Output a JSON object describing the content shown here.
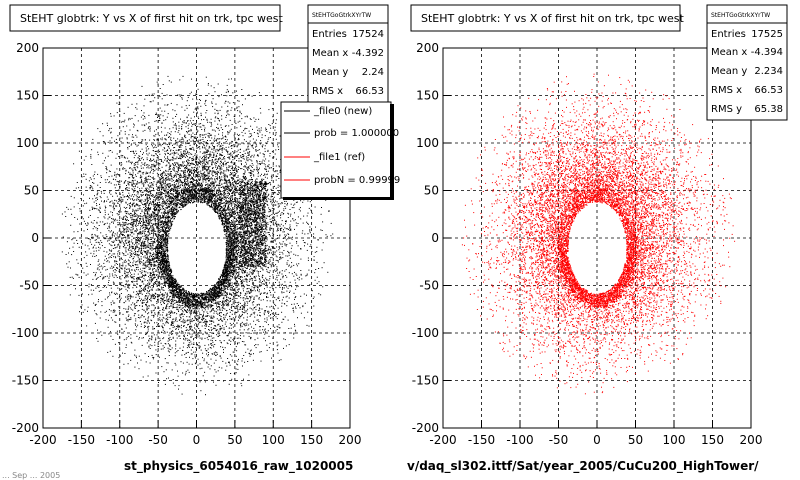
{
  "colors": {
    "new": "#000000",
    "ref": "#ff0000",
    "frame": "#000000",
    "grid": "#000000",
    "background": "#ffffff"
  },
  "footer_date_text": "... Sep ... 2005",
  "chart_data": [
    {
      "type": "scatter",
      "title": "StEHT globtrk: Y vs X of first hit on trk, tpc west",
      "xlabel": "st_physics_6054016_raw_1020005",
      "ylabel": "",
      "xlim": [
        -200,
        200
      ],
      "ylim": [
        -200,
        200
      ],
      "xticks": [
        -200,
        -150,
        -100,
        -50,
        0,
        50,
        100,
        150,
        200
      ],
      "yticks": [
        -200,
        -150,
        -100,
        -50,
        0,
        50,
        100,
        150,
        200
      ],
      "grid": true,
      "color": "#000000",
      "distribution": {
        "outer_radius": 170,
        "inner_hole_rx": 38,
        "inner_hole_ry": 48,
        "hole_center": [
          0,
          -10
        ],
        "ring_thickness": 12,
        "extra_right_blob": true
      },
      "stats": {
        "name": "StEHTGoGtrkXYrTW",
        "rows": [
          {
            "label": "Entries",
            "value": "17524"
          },
          {
            "label": "Mean x",
            "value": "-4.392"
          },
          {
            "label": "Mean y",
            "value": "2.24"
          },
          {
            "label": "RMS x",
            "value": "66.53"
          }
        ]
      },
      "legend": {
        "placement": "top-right",
        "entries": [
          {
            "label": "_file0 (new)",
            "color": "#000000"
          },
          {
            "label": "prob = 1.000000",
            "color": "#000000"
          },
          {
            "label": "_file1 (ref)",
            "color": "#ff0000"
          },
          {
            "label": "probN = 0.99999",
            "color": "#ff0000"
          }
        ]
      }
    },
    {
      "type": "scatter",
      "title": "StEHT globtrk: Y vs X of first hit on trk, tpc west",
      "xlabel": "v/daq_sl302.ittf/Sat/year_2005/CuCu200_HighTower/",
      "ylabel": "",
      "xlim": [
        -200,
        200
      ],
      "ylim": [
        -200,
        200
      ],
      "xticks": [
        -200,
        -150,
        -100,
        -50,
        0,
        50,
        100,
        150,
        200
      ],
      "yticks": [
        -200,
        -150,
        -100,
        -50,
        0,
        50,
        100,
        150,
        200
      ],
      "grid": true,
      "color": "#ff0000",
      "distribution": {
        "outer_radius": 170,
        "inner_hole_rx": 38,
        "inner_hole_ry": 48,
        "hole_center": [
          0,
          -10
        ],
        "ring_thickness": 12,
        "extra_right_blob": false
      },
      "stats": {
        "name": "StEHTGoGtrkXYrTW",
        "rows": [
          {
            "label": "Entries",
            "value": "17525"
          },
          {
            "label": "Mean x",
            "value": "-4.394"
          },
          {
            "label": "Mean y",
            "value": "2.234"
          },
          {
            "label": "RMS x",
            "value": "66.53"
          },
          {
            "label": "RMS y",
            "value": "65.38"
          }
        ]
      }
    }
  ]
}
